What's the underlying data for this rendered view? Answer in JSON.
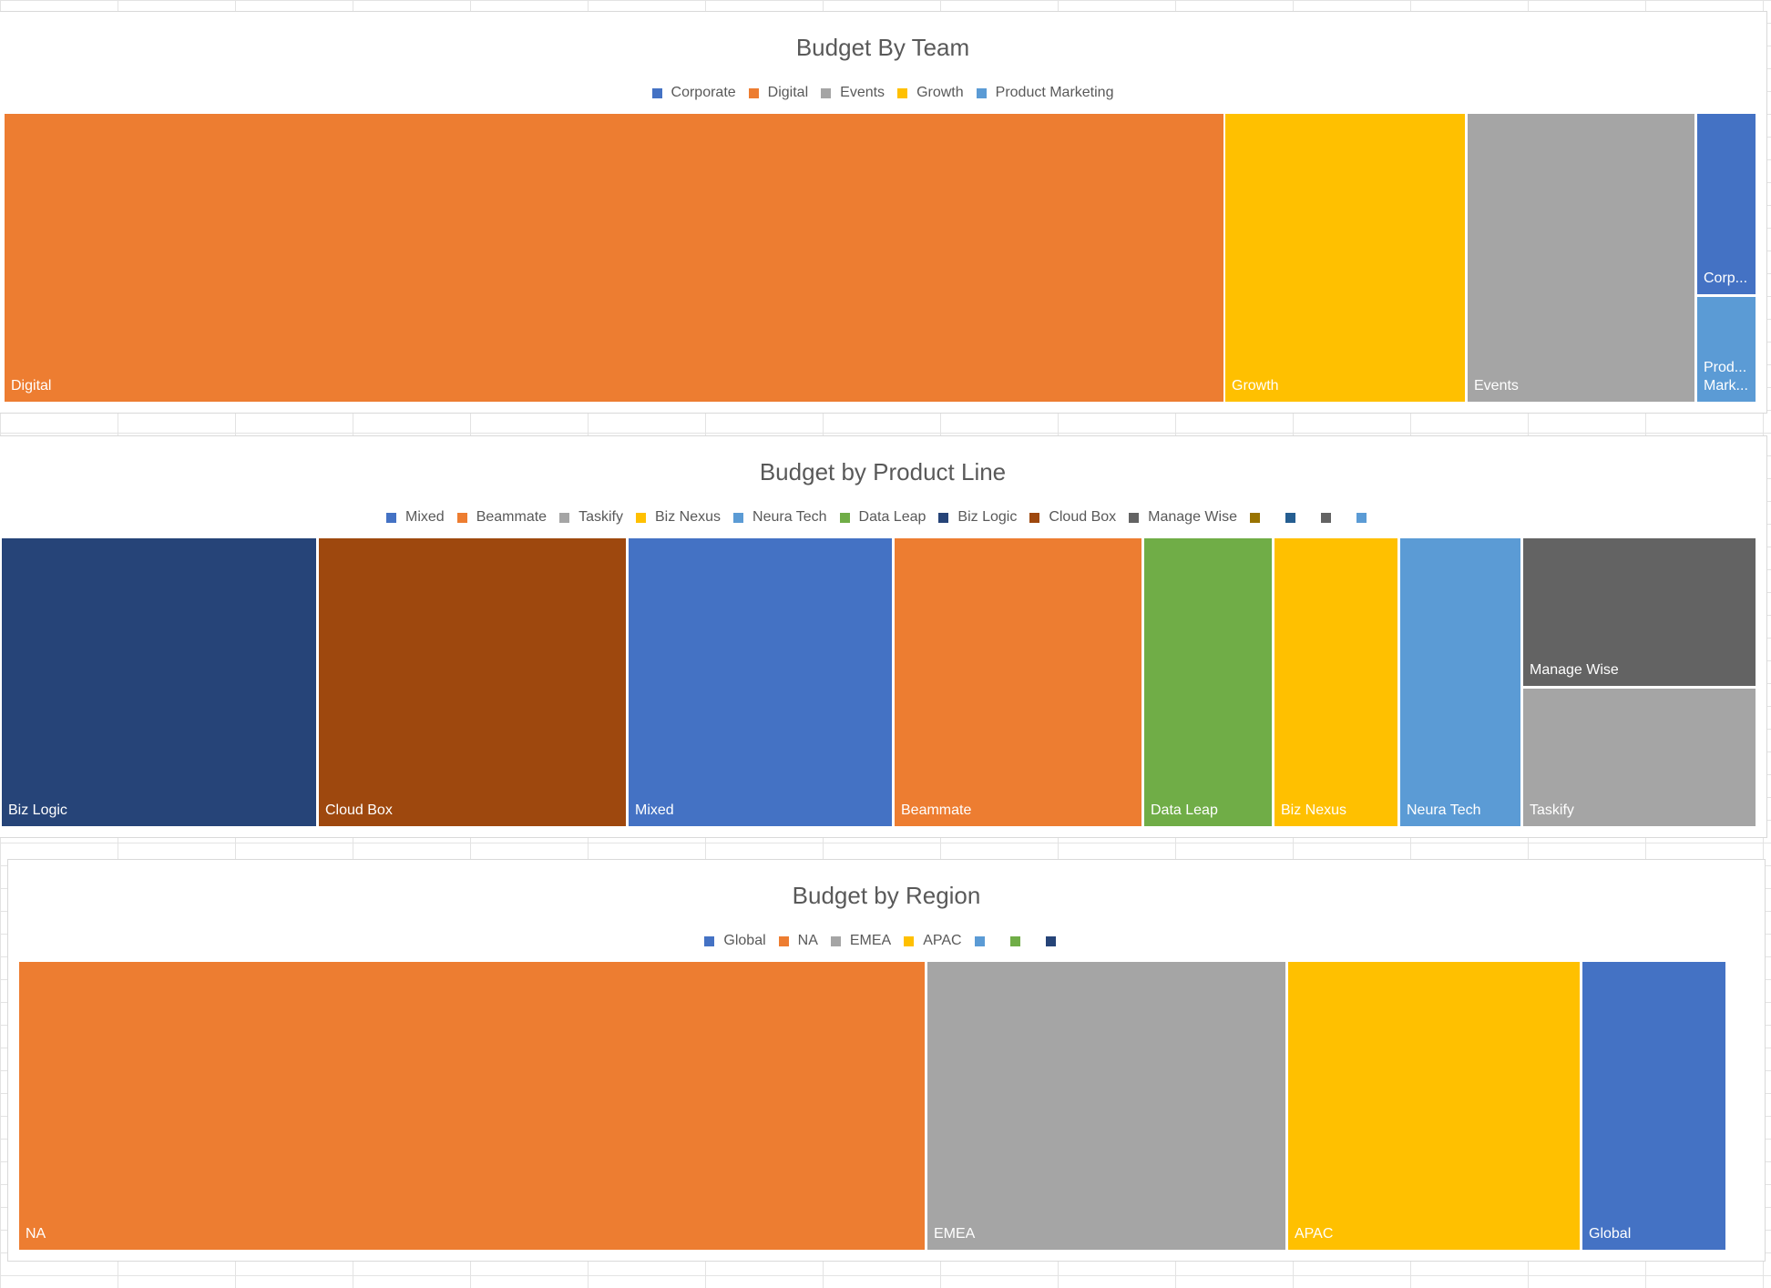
{
  "chart_data": [
    {
      "type": "treemap",
      "title": "Budget By Team",
      "legend_position": "top",
      "categories": [
        "Corporate",
        "Digital",
        "Events",
        "Growth",
        "Product Marketing"
      ],
      "colors": [
        "#4472C4",
        "#ED7D31",
        "#A5A5A5",
        "#FFC000",
        "#5B9BD5"
      ],
      "values": [
        4.7,
        69.6,
        13.1,
        13.8,
        4.3
      ],
      "tile_labels": [
        "Corp...",
        "Digital",
        "Events",
        "Growth",
        "Prod...\nMark..."
      ],
      "order": [
        1,
        3,
        2,
        0,
        4
      ]
    },
    {
      "type": "treemap",
      "title": "Budget by Product Line",
      "legend_position": "top",
      "categories": [
        "Mixed",
        "Beammate",
        "Taskify",
        "Biz Nexus",
        "Neura Tech",
        "Data Leap",
        "Biz Logic",
        "Cloud Box",
        "Manage Wise",
        "",
        "",
        "",
        ""
      ],
      "colors": [
        "#4472C4",
        "#ED7D31",
        "#A5A5A5",
        "#FFC000",
        "#5B9BD5",
        "#70AD47",
        "#264478",
        "#9E480E",
        "#636363",
        "#997300",
        "#255E91",
        "#636363",
        "#5B9BD5"
      ],
      "values": [
        15.1,
        14.2,
        7.8,
        7.1,
        6.9,
        7.4,
        18.0,
        17.6,
        7.5,
        0,
        0,
        0,
        0
      ],
      "tile_labels": [
        "Mixed",
        "Beammate",
        "Taskify",
        "Biz Nexus",
        "Neura Tech",
        "Data Leap",
        "Biz Logic",
        "Cloud Box",
        "Manage Wise"
      ],
      "order": [
        6,
        7,
        0,
        1,
        5,
        3,
        4,
        8,
        2
      ]
    },
    {
      "type": "treemap",
      "title": "Budget by Region",
      "legend_position": "top",
      "categories": [
        "Global",
        "NA",
        "EMEA",
        "APAC",
        "",
        "",
        ""
      ],
      "colors": [
        "#4472C4",
        "#ED7D31",
        "#A5A5A5",
        "#FFC000",
        "#5B9BD5",
        "#70AD47",
        "#264478"
      ],
      "values": [
        8.1,
        51.7,
        20.4,
        16.6,
        0,
        0,
        0
      ],
      "tile_labels": [
        "Global",
        "NA",
        "EMEA",
        "APAC"
      ],
      "order": [
        1,
        2,
        3,
        0
      ]
    }
  ]
}
